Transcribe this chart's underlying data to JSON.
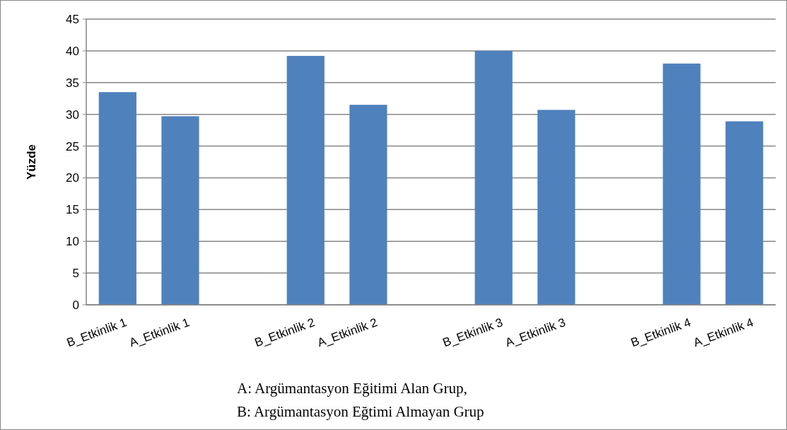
{
  "chart_data": {
    "type": "bar",
    "ylabel": "Yüzde",
    "categories": [
      "B_Etkinlik 1",
      "A_Etkinlik 1",
      null,
      "B_Etkinlik 2",
      "A_Etkinlik 2",
      null,
      "B_Etkinlik 3",
      "A_Etkinlik 3",
      null,
      "B_Etkinlik 4",
      "A_Etkinlik 4"
    ],
    "values": [
      33.5,
      29.7,
      null,
      39.2,
      31.5,
      null,
      40,
      30.7,
      null,
      38,
      28.9
    ],
    "color": "#4f81bd",
    "ylim": [
      0,
      45
    ],
    "yticks": [
      0,
      5,
      10,
      15,
      20,
      25,
      30,
      35,
      40,
      45
    ],
    "grid": "y",
    "annotations": [
      "A: Argümantasyon Eğitimi Alan Grup,",
      "B: Argümantasyon Eğtimi Almayan Grup"
    ]
  }
}
